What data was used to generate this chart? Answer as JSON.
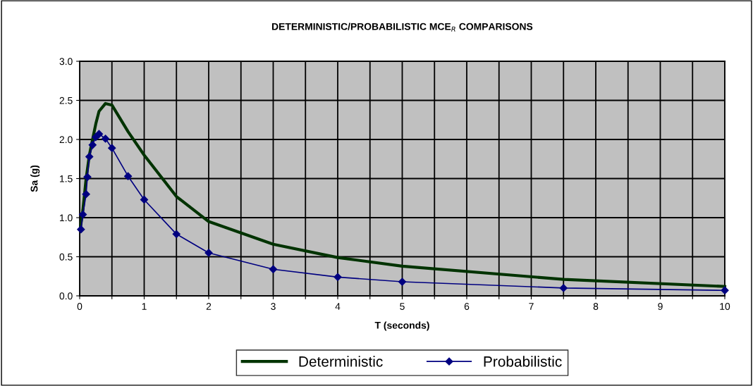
{
  "chart_data": {
    "type": "line",
    "title": "DETERMINISTIC/PROBABILISTIC MCE$_{R}$ COMPARISONS",
    "xlabel": "T (seconds)",
    "ylabel": "Sa (g)",
    "xlim": [
      0,
      10
    ],
    "ylim": [
      0,
      3.0
    ],
    "xticks": [
      0,
      {
        "value": 0.5,
        "label": null
      },
      1,
      {
        "value": 1.5,
        "label": null
      },
      2,
      {
        "value": 2.5,
        "label": null
      },
      3,
      {
        "value": 3.5,
        "label": null
      },
      4,
      {
        "value": 4.5,
        "label": null
      },
      5,
      {
        "value": 5.5,
        "label": null
      },
      6,
      {
        "value": 6.5,
        "label": null
      },
      7,
      {
        "value": 7.5,
        "label": null
      },
      8,
      {
        "value": 8.5,
        "label": null
      },
      9,
      {
        "value": 9.5,
        "label": null
      },
      10
    ],
    "yticks": [
      {
        "value": 0,
        "label": "0.0"
      },
      0.5,
      {
        "value": 1,
        "label": "1.0"
      },
      1.5,
      {
        "value": 2,
        "label": "2.0"
      },
      2.5,
      {
        "value": 3,
        "label": "3.0"
      }
    ],
    "grid": true,
    "legend": "bottom",
    "series": [
      {
        "name": "Deterministic",
        "color": "#003300",
        "marker": "none",
        "x": [
          0.01,
          0.05,
          0.1,
          0.15,
          0.2,
          0.25,
          0.3,
          0.4,
          0.5,
          0.75,
          1,
          1.5,
          2,
          3,
          4,
          5,
          7.5,
          10
        ],
        "values": [
          0.86,
          1.1,
          1.5,
          1.8,
          2.0,
          2.2,
          2.36,
          2.46,
          2.44,
          2.1,
          1.8,
          1.27,
          0.95,
          0.66,
          0.49,
          0.38,
          0.21,
          0.12
        ]
      },
      {
        "name": "Probabilistic",
        "color": "#000080",
        "marker": "diamond",
        "x": [
          0.02,
          0.05,
          0.1,
          0.12,
          0.15,
          0.2,
          0.25,
          0.3,
          0.4,
          0.5,
          0.75,
          1,
          1.5,
          2,
          3,
          4,
          5,
          7.5,
          10
        ],
        "values": [
          0.85,
          1.04,
          1.3,
          1.52,
          1.78,
          1.93,
          2.03,
          2.07,
          2.01,
          1.89,
          1.53,
          1.23,
          0.79,
          0.55,
          0.34,
          0.24,
          0.18,
          0.1,
          0.07
        ]
      }
    ]
  }
}
